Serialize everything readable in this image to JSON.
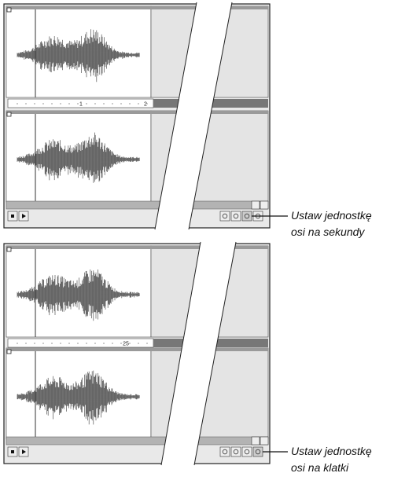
{
  "panels": [
    {
      "ruler_labels": [
        "1",
        "2"
      ],
      "callout": [
        "Ustaw jednostkę",
        "osi na sekundy"
      ]
    },
    {
      "ruler_labels": [
        "25"
      ],
      "callout": [
        "Ustaw jednostkę",
        "osi na klatki"
      ]
    }
  ]
}
